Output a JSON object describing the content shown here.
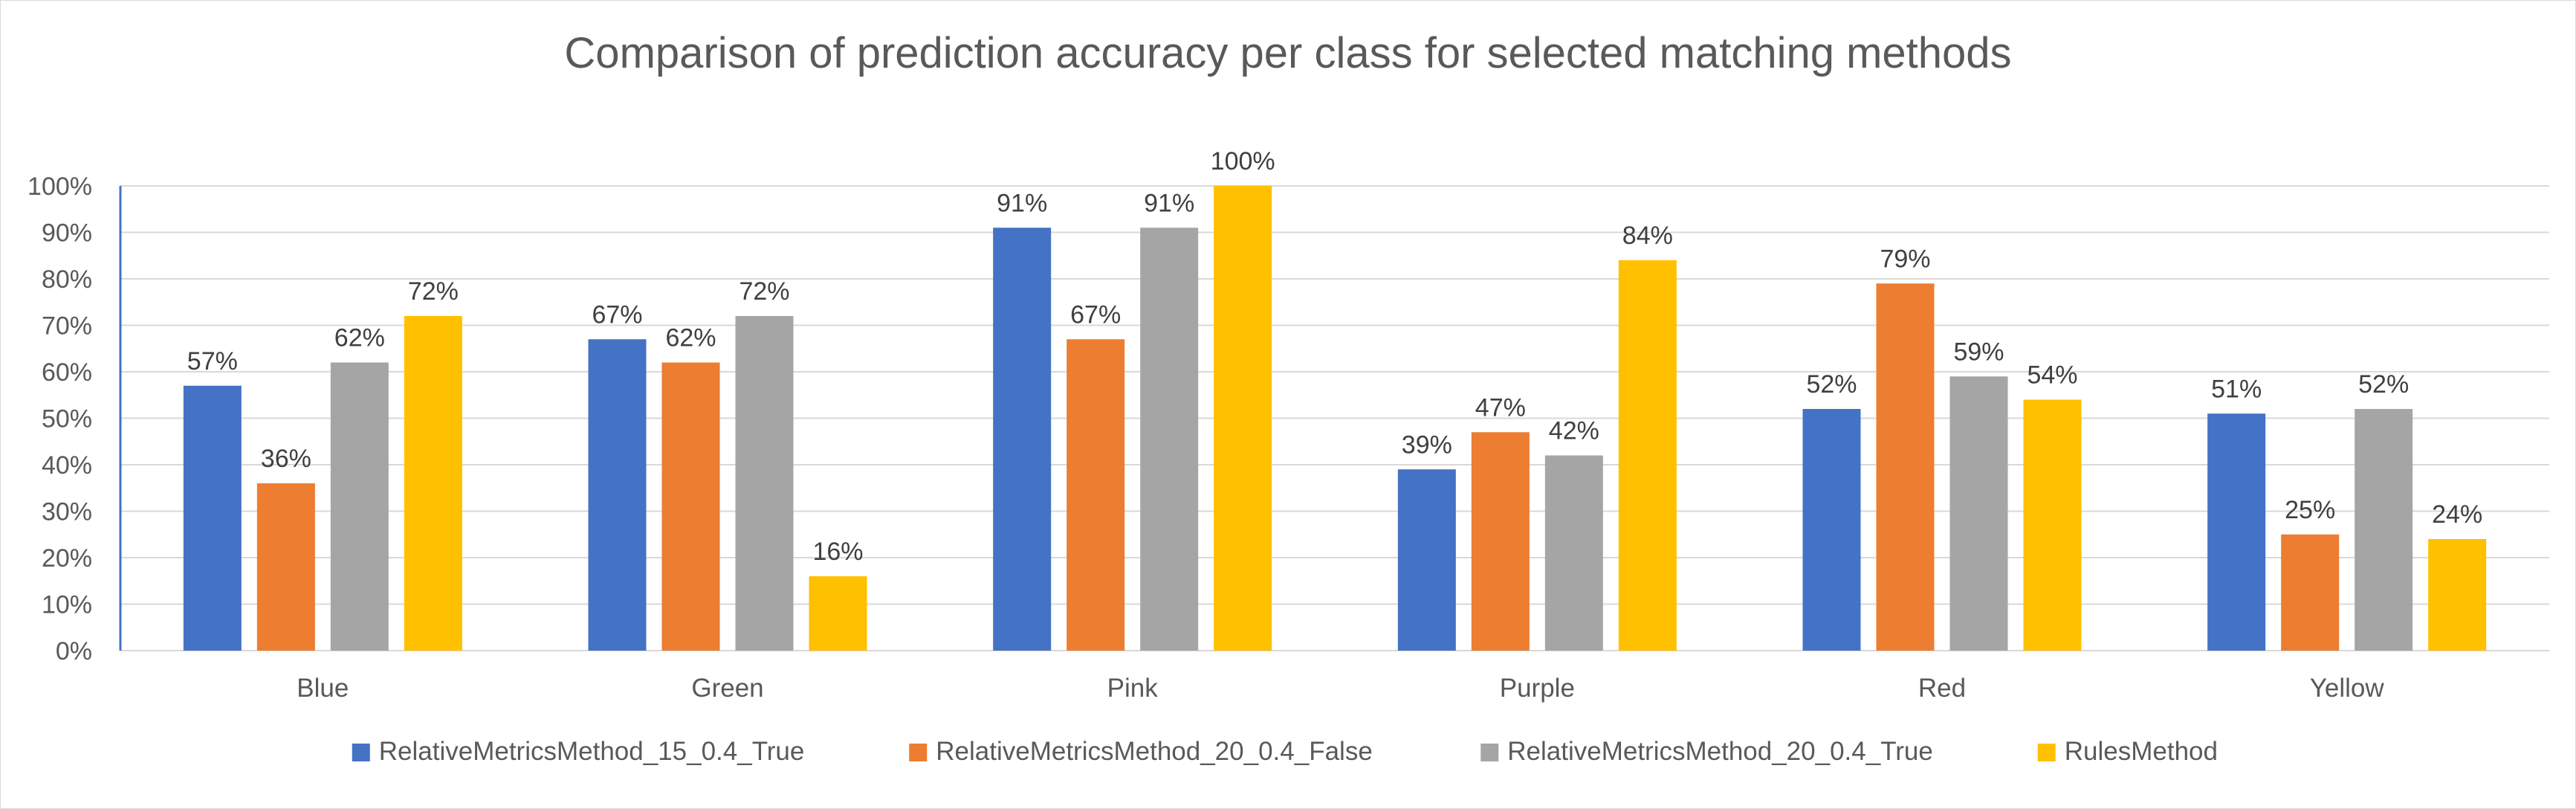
{
  "chart_data": {
    "type": "bar",
    "title": "Comparison of prediction accuracy per class for selected matching methods",
    "xlabel": "",
    "ylabel": "",
    "ylim": [
      0,
      100
    ],
    "yticks": [
      "0%",
      "10%",
      "20%",
      "30%",
      "40%",
      "50%",
      "60%",
      "70%",
      "80%",
      "90%",
      "100%"
    ],
    "grid": true,
    "legend_position": "bottom",
    "categories": [
      "Blue",
      "Green",
      "Pink",
      "Purple",
      "Red",
      "Yellow"
    ],
    "series": [
      {
        "name": "RelativeMetricsMethod_15_0.4_True",
        "color": "#4472c4",
        "values": [
          57,
          67,
          91,
          39,
          52,
          51
        ],
        "labels": [
          "57%",
          "67%",
          "91%",
          "39%",
          "52%",
          "51%"
        ]
      },
      {
        "name": "RelativeMetricsMethod_20_0.4_False",
        "color": "#ed7d31",
        "values": [
          36,
          62,
          67,
          47,
          79,
          25
        ],
        "labels": [
          "36%",
          "62%",
          "67%",
          "47%",
          "79%",
          "25%"
        ]
      },
      {
        "name": "RelativeMetricsMethod_20_0.4_True",
        "color": "#a5a5a5",
        "values": [
          62,
          72,
          91,
          42,
          59,
          52
        ],
        "labels": [
          "62%",
          "72%",
          "91%",
          "42%",
          "59%",
          "52%"
        ]
      },
      {
        "name": "RulesMethod",
        "color": "#ffc000",
        "values": [
          72,
          16,
          100,
          84,
          54,
          24
        ],
        "labels": [
          "72%",
          "16%",
          "100%",
          "84%",
          "54%",
          "24%"
        ]
      }
    ]
  }
}
